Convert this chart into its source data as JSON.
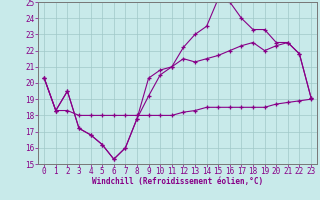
{
  "xlabel": "Windchill (Refroidissement éolien,°C)",
  "xlim": [
    -0.5,
    23.5
  ],
  "ylim": [
    15,
    25
  ],
  "yticks": [
    15,
    16,
    17,
    18,
    19,
    20,
    21,
    22,
    23,
    24,
    25
  ],
  "xticks": [
    0,
    1,
    2,
    3,
    4,
    5,
    6,
    7,
    8,
    9,
    10,
    11,
    12,
    13,
    14,
    15,
    16,
    17,
    18,
    19,
    20,
    21,
    22,
    23
  ],
  "bg_color": "#c8eaea",
  "line_color": "#880088",
  "grid_color": "#a0c8c8",
  "curve1_x": [
    0,
    1,
    2,
    3,
    4,
    5,
    6,
    7,
    8,
    9,
    10,
    11,
    12,
    13,
    14,
    15,
    16,
    17,
    18,
    19,
    20,
    21,
    22,
    23
  ],
  "curve1_y": [
    20.3,
    18.3,
    19.5,
    17.2,
    16.8,
    16.2,
    15.3,
    16.0,
    17.8,
    19.2,
    20.5,
    21.0,
    22.2,
    23.0,
    23.5,
    25.2,
    25.0,
    24.0,
    23.3,
    23.3,
    22.5,
    22.5,
    21.8,
    19.1
  ],
  "curve2_x": [
    0,
    1,
    2,
    3,
    4,
    5,
    6,
    7,
    8,
    9,
    10,
    11,
    12,
    13,
    14,
    15,
    16,
    17,
    18,
    19,
    20,
    21,
    22,
    23
  ],
  "curve2_y": [
    20.3,
    18.3,
    19.5,
    17.2,
    16.8,
    16.2,
    15.3,
    16.0,
    17.8,
    20.3,
    20.8,
    21.0,
    21.5,
    21.3,
    21.5,
    21.7,
    22.0,
    22.3,
    22.5,
    22.0,
    22.3,
    22.5,
    21.8,
    19.1
  ],
  "curve3_x": [
    0,
    1,
    2,
    3,
    4,
    5,
    6,
    7,
    8,
    9,
    10,
    11,
    12,
    13,
    14,
    15,
    16,
    17,
    18,
    19,
    20,
    21,
    22,
    23
  ],
  "curve3_y": [
    20.3,
    18.3,
    18.3,
    18.0,
    18.0,
    18.0,
    18.0,
    18.0,
    18.0,
    18.0,
    18.0,
    18.0,
    18.2,
    18.3,
    18.5,
    18.5,
    18.5,
    18.5,
    18.5,
    18.5,
    18.7,
    18.8,
    18.9,
    19.0
  ]
}
